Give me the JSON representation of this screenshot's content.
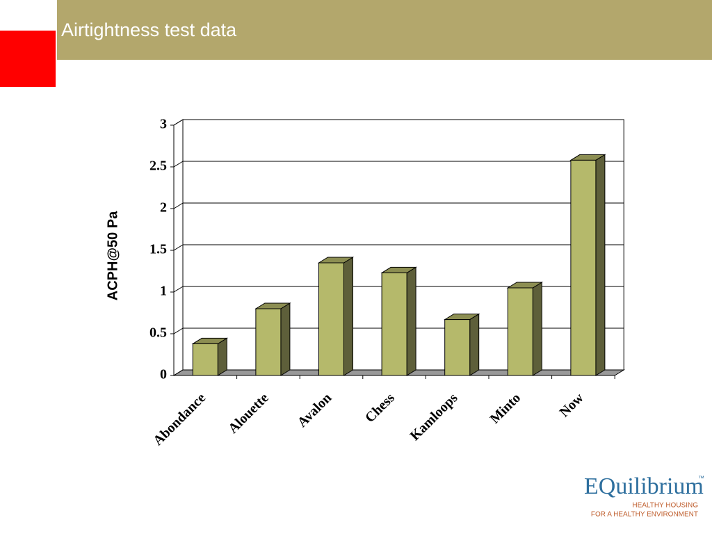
{
  "chart_data": {
    "type": "bar",
    "title": "Airtightness test data",
    "y_label": "ACPH@50 Pa",
    "categories": [
      "Abondance",
      "Alouette",
      "Avalon",
      "Chess",
      "Kamloops",
      "Minto",
      "Now"
    ],
    "values": [
      0.38,
      0.8,
      1.35,
      1.23,
      0.67,
      1.05,
      2.58
    ],
    "color": "#b5b96b",
    "ylim": [
      0,
      3
    ],
    "yticks": [
      0,
      0.5,
      1,
      1.5,
      2,
      2.5,
      3
    ],
    "grid": true
  },
  "logo": {
    "name": "EQuilibrium",
    "trademark": "™",
    "line1": "HEALTHY HOUSING",
    "line2": "FOR A HEALTHY ENVIRONMENT"
  }
}
